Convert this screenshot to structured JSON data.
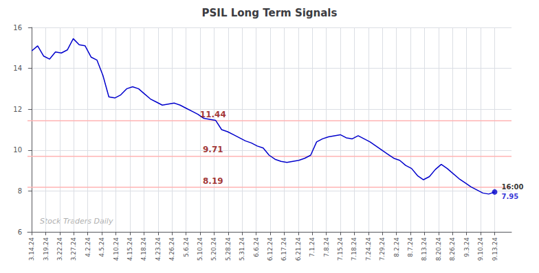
{
  "chart_data": {
    "type": "line",
    "title": "PSIL Long Term Signals",
    "xlim": [
      -0.3,
      34.2
    ],
    "xticks": [
      {
        "value": 0,
        "label": "3.14.24"
      },
      {
        "value": 1,
        "label": "3.19.24"
      },
      {
        "value": 2,
        "label": "3.22.24"
      },
      {
        "value": 3,
        "label": "3.27.24"
      },
      {
        "value": 4,
        "label": "4.2.24"
      },
      {
        "value": 5,
        "label": "4.5.24"
      },
      {
        "value": 6,
        "label": "4.10.24"
      },
      {
        "value": 7,
        "label": "4.15.24"
      },
      {
        "value": 8,
        "label": "4.18.24"
      },
      {
        "value": 9,
        "label": "4.23.24"
      },
      {
        "value": 10,
        "label": "4.26.24"
      },
      {
        "value": 11,
        "label": "5.6.24"
      },
      {
        "value": 12,
        "label": "5.10.24"
      },
      {
        "value": 13,
        "label": "5.20.24"
      },
      {
        "value": 14,
        "label": "5.28.24"
      },
      {
        "value": 15,
        "label": "5.31.24"
      },
      {
        "value": 16,
        "label": "6.6.24"
      },
      {
        "value": 17,
        "label": "6.12.24"
      },
      {
        "value": 18,
        "label": "6.17.24"
      },
      {
        "value": 19,
        "label": "6.21.24"
      },
      {
        "value": 20,
        "label": "7.1.24"
      },
      {
        "value": 21,
        "label": "7.8.24"
      },
      {
        "value": 22,
        "label": "7.15.24"
      },
      {
        "value": 23,
        "label": "7.18.24"
      },
      {
        "value": 24,
        "label": "7.24.24"
      },
      {
        "value": 25,
        "label": "7.29.24"
      },
      {
        "value": 26,
        "label": "8.2.24"
      },
      {
        "value": 27,
        "label": "8.7.24"
      },
      {
        "value": 28,
        "label": "8.13.24"
      },
      {
        "value": 29,
        "label": "8.20.24"
      },
      {
        "value": 30,
        "label": "8.26.24"
      },
      {
        "value": 31,
        "label": "9.3.24"
      },
      {
        "value": 32,
        "label": "9.10.24"
      },
      {
        "value": 33,
        "label": "9.13.24"
      }
    ],
    "values": [
      14.85,
      15.1,
      14.6,
      14.45,
      14.8,
      14.75,
      14.9,
      15.45,
      15.15,
      15.1,
      14.55,
      14.4,
      13.65,
      12.6,
      12.55,
      12.7,
      13.0,
      13.1,
      13.0,
      12.75,
      12.5,
      12.35,
      12.2,
      12.25,
      12.3,
      12.2,
      12.05,
      11.9,
      11.75,
      11.55,
      11.5,
      11.45,
      11.0,
      10.9,
      10.75,
      10.6,
      10.45,
      10.35,
      10.2,
      10.1,
      9.75,
      9.55,
      9.45,
      9.4,
      9.45,
      9.5,
      9.6,
      9.75,
      10.4,
      10.55,
      10.65,
      10.7,
      10.75,
      10.6,
      10.55,
      10.7,
      10.55,
      10.4,
      10.2,
      10.0,
      9.8,
      9.6,
      9.5,
      9.25,
      9.1,
      8.75,
      8.55,
      8.7,
      9.05,
      9.3,
      9.1,
      8.85,
      8.6,
      8.4,
      8.2,
      8.05,
      7.9,
      7.85,
      7.95
    ],
    "color": "#0000cc",
    "marker": "circle",
    "ylim": [
      6,
      16
    ],
    "yticks": [
      6,
      8,
      10,
      12,
      14,
      16
    ],
    "grid": true,
    "hlines": [
      {
        "value": 11.44,
        "label": "11.44",
        "color": "#ffb3b3",
        "label_color": "#8b0000"
      },
      {
        "value": 9.71,
        "label": "9.71",
        "color": "#ffb3b3",
        "label_color": "#8b0000"
      },
      {
        "value": 8.19,
        "label": "8.19",
        "color": "#ffb3b3",
        "label_color": "#8b0000"
      }
    ],
    "last_label": {
      "time": "16:00",
      "value": "7.95",
      "time_color": "#000000",
      "value_color": "#0000cc"
    },
    "watermark": {
      "text": "Stock Traders Daily",
      "color": "#b0b0b0"
    }
  }
}
